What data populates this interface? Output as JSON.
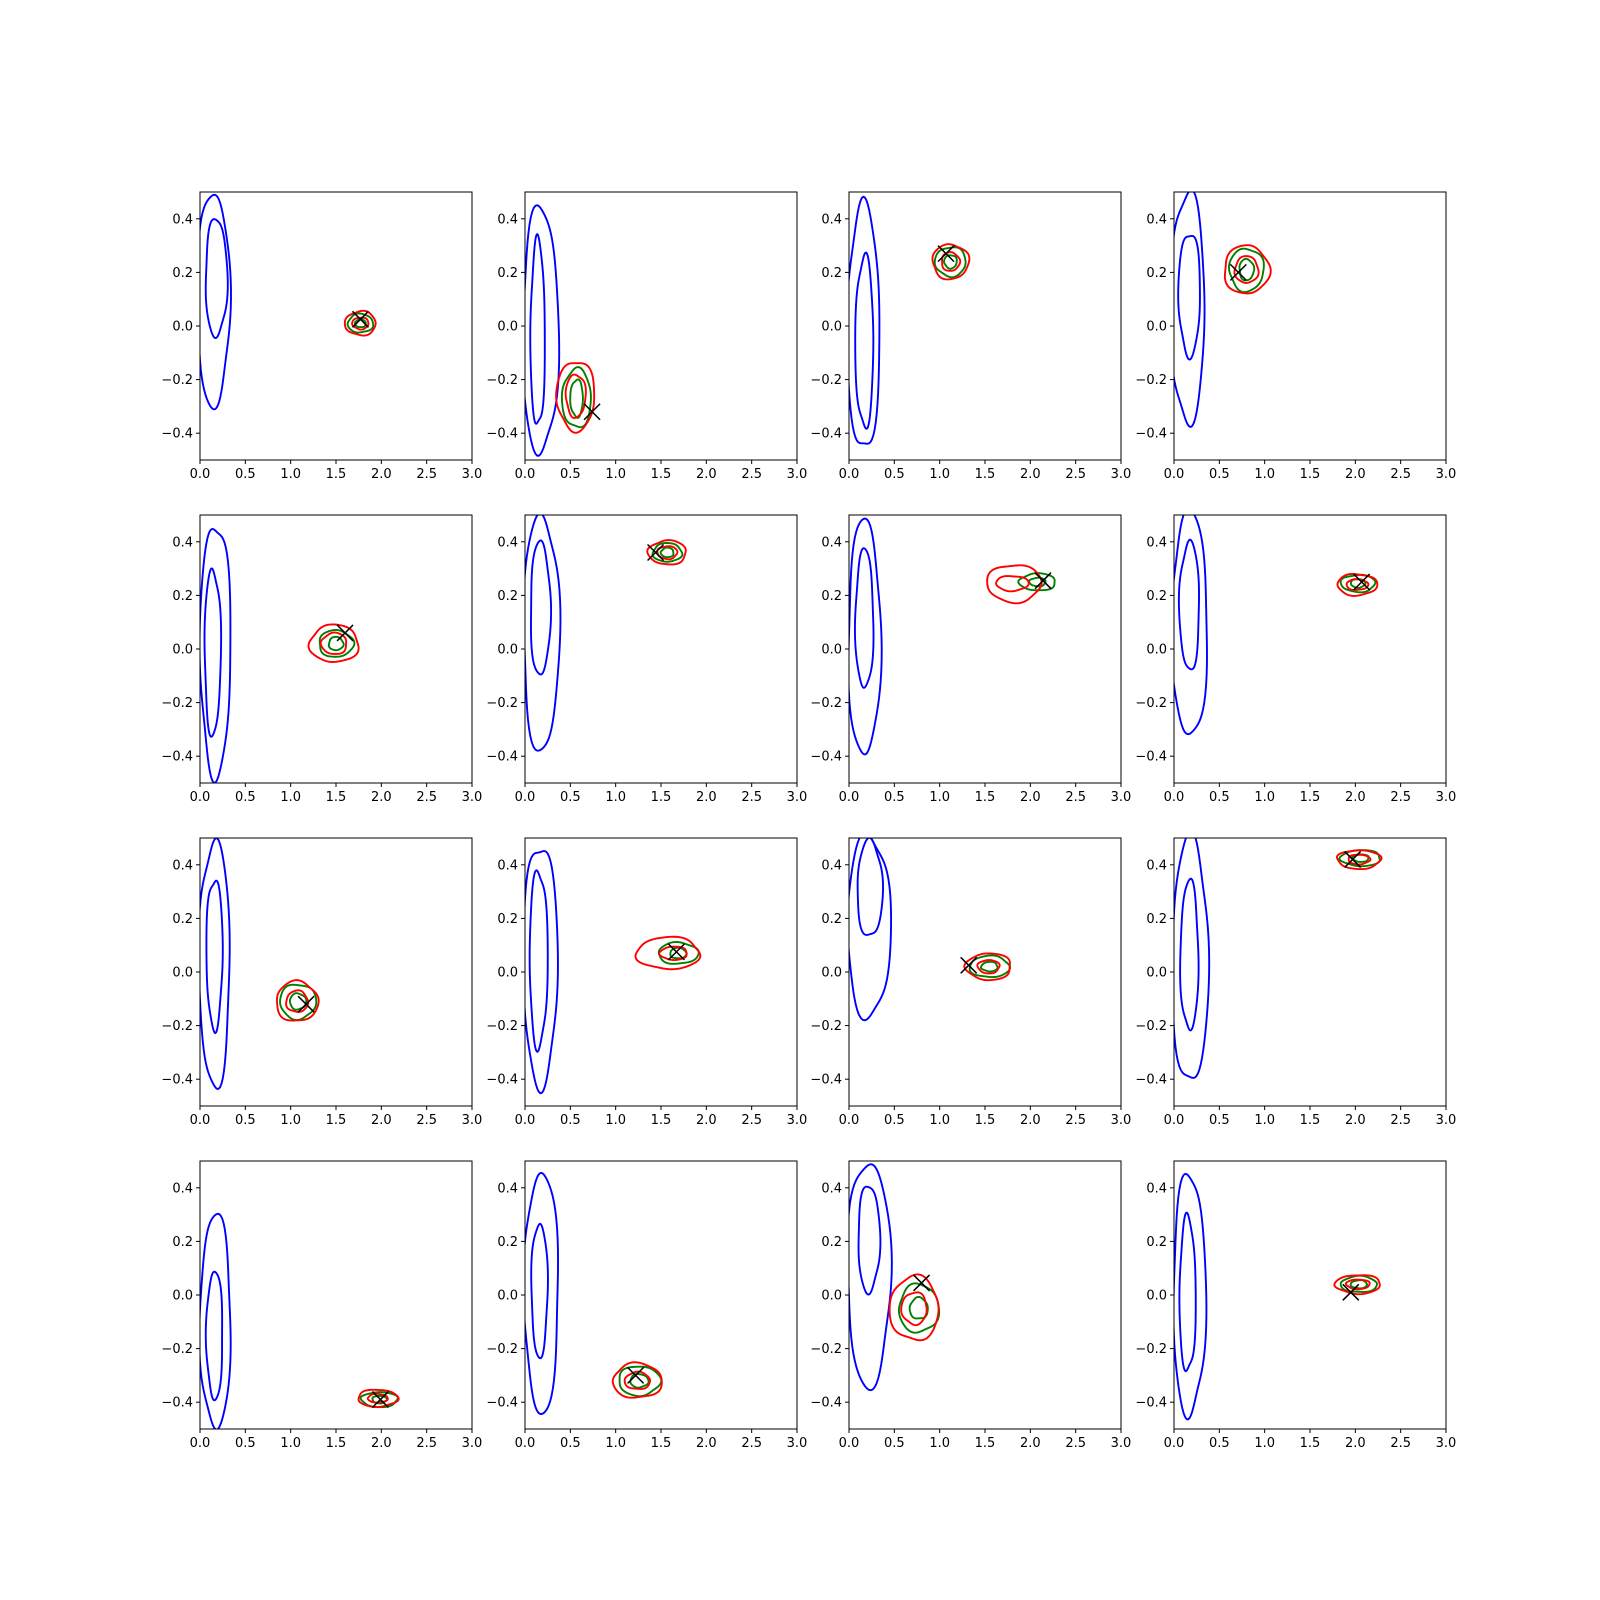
{
  "chart_data": {
    "type": "contour",
    "layout": {
      "rows": 4,
      "cols": 4
    },
    "xlim": [
      0.0,
      3.0
    ],
    "ylim": [
      -0.5,
      0.5
    ],
    "xticks": [
      "0.0",
      "0.5",
      "1.0",
      "1.5",
      "2.0",
      "2.5",
      "3.0"
    ],
    "yticks": [
      "−0.4",
      "−0.2",
      "0.0",
      "0.2",
      "0.4"
    ],
    "xtick_values": [
      0.0,
      0.5,
      1.0,
      1.5,
      2.0,
      2.5,
      3.0
    ],
    "ytick_values": [
      -0.4,
      -0.2,
      0.0,
      0.2,
      0.4
    ],
    "grid": false,
    "colors": {
      "blue": "#0000ff",
      "green": "#008000",
      "red": "#ff0000",
      "marker": "#000000"
    },
    "panels": [
      {
        "blue": [
          {
            "cx": 0.15,
            "cy": 0.1,
            "rx": 0.18,
            "ry": 0.4
          },
          {
            "cx": 0.18,
            "cy": 0.18,
            "rx": 0.12,
            "ry": 0.22
          }
        ],
        "green": [
          {
            "cx": 1.77,
            "cy": 0.01,
            "rx": 0.14,
            "ry": 0.035
          },
          {
            "cx": 1.77,
            "cy": 0.01,
            "rx": 0.06,
            "ry": 0.015
          }
        ],
        "red": [
          {
            "cx": 1.77,
            "cy": 0.01,
            "rx": 0.17,
            "ry": 0.045
          },
          {
            "cx": 1.77,
            "cy": 0.01,
            "rx": 0.09,
            "ry": 0.022
          }
        ],
        "marker": {
          "x": 1.77,
          "y": 0.025
        }
      },
      {
        "blue": [
          {
            "cx": 0.17,
            "cy": -0.02,
            "rx": 0.2,
            "ry": 0.46
          },
          {
            "cx": 0.14,
            "cy": -0.03,
            "rx": 0.08,
            "ry": 0.35
          }
        ],
        "green": [
          {
            "cx": 0.57,
            "cy": -0.27,
            "rx": 0.16,
            "ry": 0.11
          },
          {
            "cx": 0.57,
            "cy": -0.27,
            "rx": 0.07,
            "ry": 0.07
          }
        ],
        "red": [
          {
            "cx": 0.56,
            "cy": -0.26,
            "rx": 0.21,
            "ry": 0.13
          },
          {
            "cx": 0.56,
            "cy": -0.26,
            "rx": 0.11,
            "ry": 0.08
          }
        ],
        "marker": {
          "x": 0.74,
          "y": -0.32
        }
      },
      {
        "blue": [
          {
            "cx": 0.16,
            "cy": -0.01,
            "rx": 0.18,
            "ry": 0.46
          },
          {
            "cx": 0.17,
            "cy": -0.06,
            "rx": 0.1,
            "ry": 0.32
          }
        ],
        "green": [
          {
            "cx": 1.12,
            "cy": 0.24,
            "rx": 0.17,
            "ry": 0.055
          },
          {
            "cx": 1.12,
            "cy": 0.24,
            "rx": 0.07,
            "ry": 0.025
          }
        ],
        "red": [
          {
            "cx": 1.12,
            "cy": 0.24,
            "rx": 0.2,
            "ry": 0.065
          },
          {
            "cx": 1.12,
            "cy": 0.24,
            "rx": 0.1,
            "ry": 0.035
          }
        ],
        "marker": {
          "x": 1.07,
          "y": 0.27
        }
      },
      {
        "blue": [
          {
            "cx": 0.15,
            "cy": 0.07,
            "rx": 0.19,
            "ry": 0.43
          },
          {
            "cx": 0.17,
            "cy": 0.12,
            "rx": 0.12,
            "ry": 0.23
          }
        ],
        "green": [
          {
            "cx": 0.8,
            "cy": 0.21,
            "rx": 0.19,
            "ry": 0.08
          },
          {
            "cx": 0.8,
            "cy": 0.21,
            "rx": 0.08,
            "ry": 0.04
          }
        ],
        "red": [
          {
            "cx": 0.8,
            "cy": 0.21,
            "rx": 0.25,
            "ry": 0.09
          },
          {
            "cx": 0.8,
            "cy": 0.21,
            "rx": 0.13,
            "ry": 0.05
          }
        ],
        "marker": {
          "x": 0.71,
          "y": 0.2
        }
      },
      {
        "blue": [
          {
            "cx": 0.17,
            "cy": 0.0,
            "rx": 0.17,
            "ry": 0.47
          },
          {
            "cx": 0.14,
            "cy": -0.01,
            "rx": 0.09,
            "ry": 0.31
          }
        ],
        "green": [
          {
            "cx": 1.5,
            "cy": 0.02,
            "rx": 0.19,
            "ry": 0.05
          },
          {
            "cx": 1.5,
            "cy": 0.02,
            "rx": 0.08,
            "ry": 0.025
          }
        ],
        "red": [
          {
            "cx": 1.48,
            "cy": 0.02,
            "rx": 0.27,
            "ry": 0.07
          },
          {
            "cx": 1.48,
            "cy": 0.02,
            "rx": 0.14,
            "ry": 0.04
          }
        ],
        "marker": {
          "x": 1.6,
          "y": 0.06
        }
      },
      {
        "blue": [
          {
            "cx": 0.18,
            "cy": 0.06,
            "rx": 0.2,
            "ry": 0.44
          },
          {
            "cx": 0.17,
            "cy": 0.15,
            "rx": 0.11,
            "ry": 0.25
          }
        ],
        "green": [
          {
            "cx": 1.57,
            "cy": 0.36,
            "rx": 0.16,
            "ry": 0.035
          },
          {
            "cx": 1.57,
            "cy": 0.36,
            "rx": 0.07,
            "ry": 0.018
          }
        ],
        "red": [
          {
            "cx": 1.57,
            "cy": 0.36,
            "rx": 0.21,
            "ry": 0.045
          },
          {
            "cx": 1.57,
            "cy": 0.36,
            "rx": 0.11,
            "ry": 0.024
          }
        ],
        "marker": {
          "x": 1.44,
          "y": 0.36
        }
      },
      {
        "blue": [
          {
            "cx": 0.17,
            "cy": 0.04,
            "rx": 0.18,
            "ry": 0.44
          },
          {
            "cx": 0.17,
            "cy": 0.11,
            "rx": 0.1,
            "ry": 0.26
          }
        ],
        "green": [
          {
            "cx": 2.08,
            "cy": 0.25,
            "rx": 0.2,
            "ry": 0.032
          },
          {
            "cx": 2.08,
            "cy": 0.25,
            "rx": 0.09,
            "ry": 0.016
          }
        ],
        "red": [
          {
            "cx": 1.82,
            "cy": 0.245,
            "rx": 0.3,
            "ry": 0.07
          },
          {
            "cx": 1.8,
            "cy": 0.245,
            "rx": 0.18,
            "ry": 0.028
          }
        ],
        "marker": {
          "x": 2.14,
          "y": 0.255
        }
      },
      {
        "blue": [
          {
            "cx": 0.17,
            "cy": 0.09,
            "rx": 0.2,
            "ry": 0.42
          },
          {
            "cx": 0.17,
            "cy": 0.16,
            "rx": 0.11,
            "ry": 0.24
          }
        ],
        "green": [
          {
            "cx": 2.03,
            "cy": 0.245,
            "rx": 0.19,
            "ry": 0.032
          },
          {
            "cx": 2.03,
            "cy": 0.245,
            "rx": 0.08,
            "ry": 0.016
          }
        ],
        "red": [
          {
            "cx": 2.02,
            "cy": 0.24,
            "rx": 0.22,
            "ry": 0.04
          },
          {
            "cx": 2.02,
            "cy": 0.24,
            "rx": 0.12,
            "ry": 0.02
          }
        ],
        "marker": {
          "x": 2.07,
          "y": 0.25
        }
      },
      {
        "blue": [
          {
            "cx": 0.16,
            "cy": 0.03,
            "rx": 0.17,
            "ry": 0.46
          },
          {
            "cx": 0.16,
            "cy": 0.07,
            "rx": 0.09,
            "ry": 0.28
          }
        ],
        "green": [
          {
            "cx": 1.08,
            "cy": -0.11,
            "rx": 0.2,
            "ry": 0.065
          },
          {
            "cx": 1.08,
            "cy": -0.11,
            "rx": 0.09,
            "ry": 0.03
          }
        ],
        "red": [
          {
            "cx": 1.07,
            "cy": -0.11,
            "rx": 0.23,
            "ry": 0.075
          },
          {
            "cx": 1.07,
            "cy": -0.11,
            "rx": 0.12,
            "ry": 0.04
          }
        ],
        "marker": {
          "x": 1.17,
          "y": -0.12
        }
      },
      {
        "blue": [
          {
            "cx": 0.17,
            "cy": 0.03,
            "rx": 0.19,
            "ry": 0.45
          },
          {
            "cx": 0.15,
            "cy": 0.05,
            "rx": 0.1,
            "ry": 0.33
          }
        ],
        "green": [
          {
            "cx": 1.69,
            "cy": 0.07,
            "rx": 0.22,
            "ry": 0.04
          },
          {
            "cx": 1.69,
            "cy": 0.07,
            "rx": 0.09,
            "ry": 0.02
          }
        ],
        "red": [
          {
            "cx": 1.58,
            "cy": 0.07,
            "rx": 0.35,
            "ry": 0.06
          },
          {
            "cx": 1.64,
            "cy": 0.07,
            "rx": 0.15,
            "ry": 0.025
          }
        ],
        "marker": {
          "x": 1.67,
          "y": 0.075
        }
      },
      {
        "blue": [
          {
            "cx": 0.22,
            "cy": 0.17,
            "rx": 0.24,
            "ry": 0.34
          },
          {
            "cx": 0.23,
            "cy": 0.31,
            "rx": 0.14,
            "ry": 0.18
          }
        ],
        "green": [
          {
            "cx": 1.55,
            "cy": 0.02,
            "rx": 0.22,
            "ry": 0.04
          },
          {
            "cx": 1.55,
            "cy": 0.02,
            "rx": 0.09,
            "ry": 0.018
          }
        ],
        "red": [
          {
            "cx": 1.54,
            "cy": 0.02,
            "rx": 0.25,
            "ry": 0.05
          },
          {
            "cx": 1.54,
            "cy": 0.02,
            "rx": 0.12,
            "ry": 0.025
          }
        ],
        "marker": {
          "x": 1.32,
          "y": 0.025
        }
      },
      {
        "blue": [
          {
            "cx": 0.18,
            "cy": 0.04,
            "rx": 0.2,
            "ry": 0.46
          },
          {
            "cx": 0.17,
            "cy": 0.06,
            "rx": 0.1,
            "ry": 0.28
          }
        ],
        "green": [
          {
            "cx": 2.06,
            "cy": 0.425,
            "rx": 0.22,
            "ry": 0.03
          },
          {
            "cx": 2.06,
            "cy": 0.425,
            "rx": 0.09,
            "ry": 0.014
          }
        ],
        "red": [
          {
            "cx": 2.04,
            "cy": 0.42,
            "rx": 0.24,
            "ry": 0.035
          },
          {
            "cx": 2.04,
            "cy": 0.42,
            "rx": 0.12,
            "ry": 0.018
          }
        ],
        "marker": {
          "x": 1.97,
          "y": 0.42
        }
      },
      {
        "blue": [
          {
            "cx": 0.17,
            "cy": -0.1,
            "rx": 0.17,
            "ry": 0.4
          },
          {
            "cx": 0.16,
            "cy": -0.15,
            "rx": 0.09,
            "ry": 0.24
          }
        ],
        "green": [
          {
            "cx": 1.98,
            "cy": -0.39,
            "rx": 0.2,
            "ry": 0.028
          },
          {
            "cx": 1.98,
            "cy": -0.39,
            "rx": 0.08,
            "ry": 0.014
          }
        ],
        "red": [
          {
            "cx": 1.96,
            "cy": -0.385,
            "rx": 0.22,
            "ry": 0.032
          },
          {
            "cx": 1.96,
            "cy": -0.385,
            "rx": 0.11,
            "ry": 0.016
          }
        ],
        "marker": {
          "x": 1.99,
          "y": -0.39
        }
      },
      {
        "blue": [
          {
            "cx": 0.18,
            "cy": 0.01,
            "rx": 0.19,
            "ry": 0.45
          },
          {
            "cx": 0.16,
            "cy": 0.02,
            "rx": 0.09,
            "ry": 0.25
          }
        ],
        "green": [
          {
            "cx": 1.26,
            "cy": -0.32,
            "rx": 0.23,
            "ry": 0.055
          },
          {
            "cx": 1.26,
            "cy": -0.32,
            "rx": 0.1,
            "ry": 0.025
          }
        ],
        "red": [
          {
            "cx": 1.24,
            "cy": -0.32,
            "rx": 0.27,
            "ry": 0.065
          },
          {
            "cx": 1.24,
            "cy": -0.32,
            "rx": 0.14,
            "ry": 0.032
          }
        ],
        "marker": {
          "x": 1.22,
          "y": -0.3
        }
      },
      {
        "blue": [
          {
            "cx": 0.22,
            "cy": 0.08,
            "rx": 0.24,
            "ry": 0.42
          },
          {
            "cx": 0.22,
            "cy": 0.21,
            "rx": 0.12,
            "ry": 0.2
          }
        ],
        "green": [
          {
            "cx": 0.77,
            "cy": -0.05,
            "rx": 0.22,
            "ry": 0.09
          },
          {
            "cx": 0.77,
            "cy": -0.05,
            "rx": 0.1,
            "ry": 0.04
          }
        ],
        "red": [
          {
            "cx": 0.72,
            "cy": -0.05,
            "rx": 0.27,
            "ry": 0.12
          },
          {
            "cx": 0.72,
            "cy": -0.05,
            "rx": 0.14,
            "ry": 0.06
          }
        ],
        "marker": {
          "x": 0.8,
          "y": 0.045
        }
      },
      {
        "blue": [
          {
            "cx": 0.17,
            "cy": 0.0,
            "rx": 0.18,
            "ry": 0.45
          },
          {
            "cx": 0.15,
            "cy": 0.0,
            "rx": 0.09,
            "ry": 0.29
          }
        ],
        "green": [
          {
            "cx": 2.04,
            "cy": 0.04,
            "rx": 0.2,
            "ry": 0.03
          },
          {
            "cx": 2.04,
            "cy": 0.04,
            "rx": 0.09,
            "ry": 0.015
          }
        ],
        "red": [
          {
            "cx": 2.03,
            "cy": 0.04,
            "rx": 0.25,
            "ry": 0.035
          },
          {
            "cx": 2.03,
            "cy": 0.04,
            "rx": 0.13,
            "ry": 0.018
          }
        ],
        "marker": {
          "x": 1.95,
          "y": 0.01
        }
      }
    ]
  }
}
